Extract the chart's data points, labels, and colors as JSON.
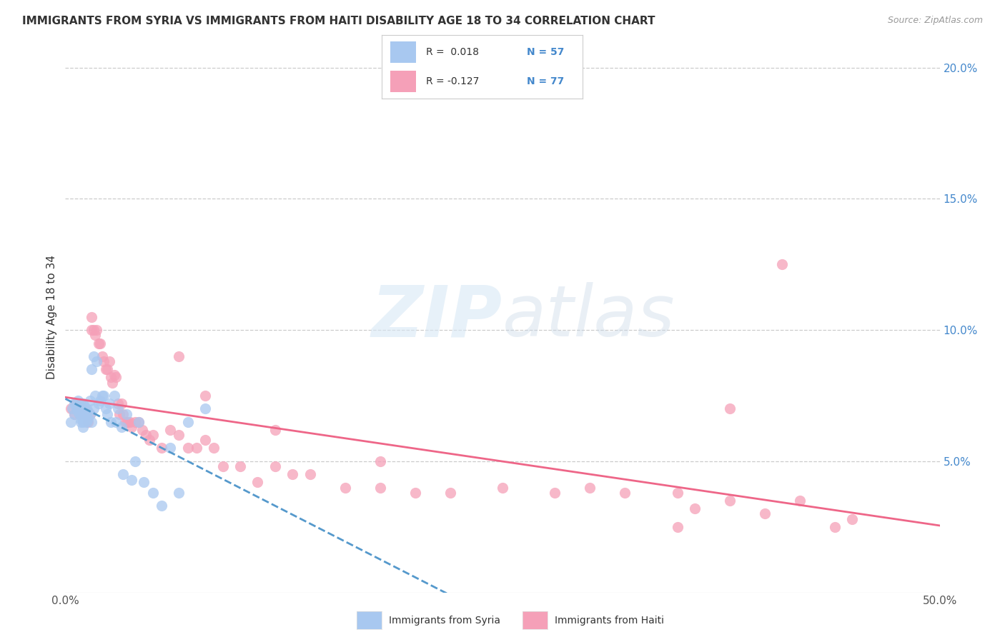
{
  "title": "IMMIGRANTS FROM SYRIA VS IMMIGRANTS FROM HAITI DISABILITY AGE 18 TO 34 CORRELATION CHART",
  "source": "Source: ZipAtlas.com",
  "ylabel": "Disability Age 18 to 34",
  "xlim": [
    0.0,
    0.5
  ],
  "ylim": [
    0.0,
    0.21
  ],
  "xticks": [
    0.0,
    0.1,
    0.2,
    0.3,
    0.4,
    0.5
  ],
  "xticklabels": [
    "0.0%",
    "",
    "",
    "",
    "",
    "50.0%"
  ],
  "yticks": [
    0.05,
    0.1,
    0.15,
    0.2
  ],
  "yticklabels": [
    "5.0%",
    "10.0%",
    "15.0%",
    "20.0%"
  ],
  "syria_color": "#a8c8f0",
  "haiti_color": "#f5a0b8",
  "syria_line_color": "#5599cc",
  "haiti_line_color": "#ee6688",
  "watermark_zip": "ZIP",
  "watermark_atlas": "atlas",
  "background_color": "#ffffff",
  "grid_color": "#cccccc",
  "right_axis_color": "#4488cc",
  "title_color": "#333333",
  "tick_color": "#555555",
  "syria_scatter_x": [
    0.003,
    0.004,
    0.005,
    0.005,
    0.006,
    0.007,
    0.007,
    0.008,
    0.008,
    0.009,
    0.009,
    0.009,
    0.01,
    0.01,
    0.01,
    0.01,
    0.01,
    0.01,
    0.011,
    0.011,
    0.012,
    0.012,
    0.012,
    0.013,
    0.013,
    0.014,
    0.014,
    0.015,
    0.015,
    0.016,
    0.016,
    0.017,
    0.018,
    0.019,
    0.02,
    0.021,
    0.022,
    0.023,
    0.024,
    0.025,
    0.026,
    0.028,
    0.029,
    0.03,
    0.032,
    0.033,
    0.035,
    0.038,
    0.04,
    0.042,
    0.045,
    0.05,
    0.055,
    0.06,
    0.065,
    0.07,
    0.08
  ],
  "syria_scatter_y": [
    0.065,
    0.07,
    0.068,
    0.072,
    0.071,
    0.069,
    0.073,
    0.068,
    0.071,
    0.065,
    0.069,
    0.066,
    0.07,
    0.068,
    0.072,
    0.065,
    0.063,
    0.066,
    0.071,
    0.069,
    0.07,
    0.068,
    0.065,
    0.069,
    0.066,
    0.073,
    0.068,
    0.085,
    0.065,
    0.09,
    0.07,
    0.075,
    0.088,
    0.072,
    0.073,
    0.075,
    0.075,
    0.07,
    0.068,
    0.072,
    0.065,
    0.075,
    0.065,
    0.07,
    0.063,
    0.045,
    0.068,
    0.043,
    0.05,
    0.065,
    0.042,
    0.038,
    0.033,
    0.055,
    0.038,
    0.065,
    0.07
  ],
  "haiti_scatter_x": [
    0.003,
    0.005,
    0.006,
    0.007,
    0.008,
    0.009,
    0.01,
    0.011,
    0.012,
    0.013,
    0.014,
    0.015,
    0.015,
    0.016,
    0.017,
    0.018,
    0.019,
    0.02,
    0.021,
    0.022,
    0.023,
    0.024,
    0.025,
    0.026,
    0.027,
    0.028,
    0.029,
    0.03,
    0.031,
    0.032,
    0.033,
    0.034,
    0.035,
    0.036,
    0.037,
    0.038,
    0.04,
    0.042,
    0.044,
    0.046,
    0.048,
    0.05,
    0.055,
    0.06,
    0.065,
    0.07,
    0.075,
    0.08,
    0.085,
    0.09,
    0.1,
    0.11,
    0.12,
    0.13,
    0.14,
    0.16,
    0.18,
    0.2,
    0.22,
    0.25,
    0.28,
    0.3,
    0.32,
    0.35,
    0.38,
    0.4,
    0.42,
    0.45,
    0.36,
    0.38,
    0.41,
    0.44,
    0.065,
    0.08,
    0.12,
    0.18,
    0.35
  ],
  "haiti_scatter_y": [
    0.07,
    0.068,
    0.072,
    0.07,
    0.068,
    0.072,
    0.07,
    0.068,
    0.069,
    0.065,
    0.068,
    0.105,
    0.1,
    0.1,
    0.098,
    0.1,
    0.095,
    0.095,
    0.09,
    0.088,
    0.085,
    0.085,
    0.088,
    0.082,
    0.08,
    0.083,
    0.082,
    0.072,
    0.068,
    0.072,
    0.068,
    0.065,
    0.065,
    0.065,
    0.065,
    0.063,
    0.065,
    0.065,
    0.062,
    0.06,
    0.058,
    0.06,
    0.055,
    0.062,
    0.06,
    0.055,
    0.055,
    0.058,
    0.055,
    0.048,
    0.048,
    0.042,
    0.048,
    0.045,
    0.045,
    0.04,
    0.04,
    0.038,
    0.038,
    0.04,
    0.038,
    0.04,
    0.038,
    0.038,
    0.035,
    0.03,
    0.035,
    0.028,
    0.032,
    0.07,
    0.125,
    0.025,
    0.09,
    0.075,
    0.062,
    0.05,
    0.025
  ]
}
